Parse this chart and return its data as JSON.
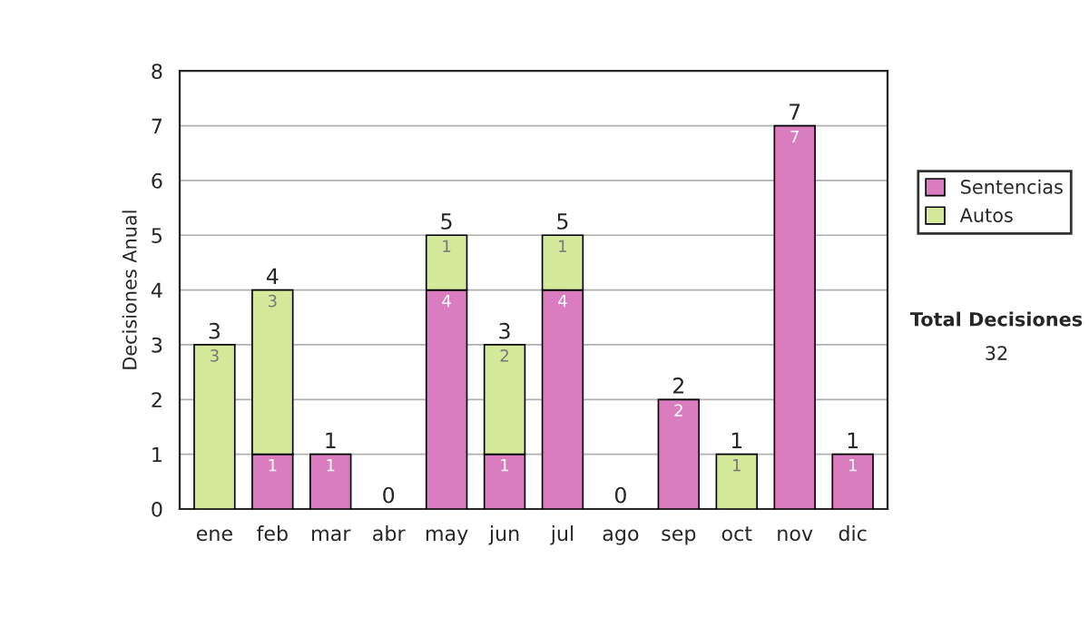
{
  "chart_data": {
    "type": "bar",
    "stacked": true,
    "ylabel": "Decisiones Anual",
    "categories": [
      "ene",
      "feb",
      "mar",
      "abr",
      "may",
      "jun",
      "jul",
      "ago",
      "sep",
      "oct",
      "nov",
      "dic"
    ],
    "series": [
      {
        "name": "Sentencias",
        "color": "#d97cc0",
        "values": [
          0,
          1,
          1,
          0,
          4,
          1,
          4,
          0,
          2,
          0,
          7,
          1
        ],
        "value_labels": [
          null,
          "1",
          "1",
          null,
          "4",
          "1",
          "4",
          null,
          "2",
          null,
          "7",
          "1"
        ]
      },
      {
        "name": "Autos",
        "color": "#d5e99b",
        "values": [
          3,
          3,
          0,
          0,
          1,
          2,
          1,
          0,
          0,
          1,
          0,
          0
        ],
        "value_labels": [
          "3",
          "3",
          null,
          null,
          "1",
          "2",
          "1",
          null,
          null,
          "1",
          null,
          null
        ]
      }
    ],
    "totals": [
      "3",
      "4",
      "1",
      "0",
      "5",
      "3",
      "5",
      "0",
      "2",
      "1",
      "7",
      "1"
    ],
    "ylim": [
      0,
      8
    ],
    "yticks": [
      0,
      1,
      2,
      3,
      4,
      5,
      6,
      7,
      8
    ],
    "grid": "y",
    "legend": "right",
    "annotations": [
      "Total Decisiones",
      "32"
    ]
  }
}
